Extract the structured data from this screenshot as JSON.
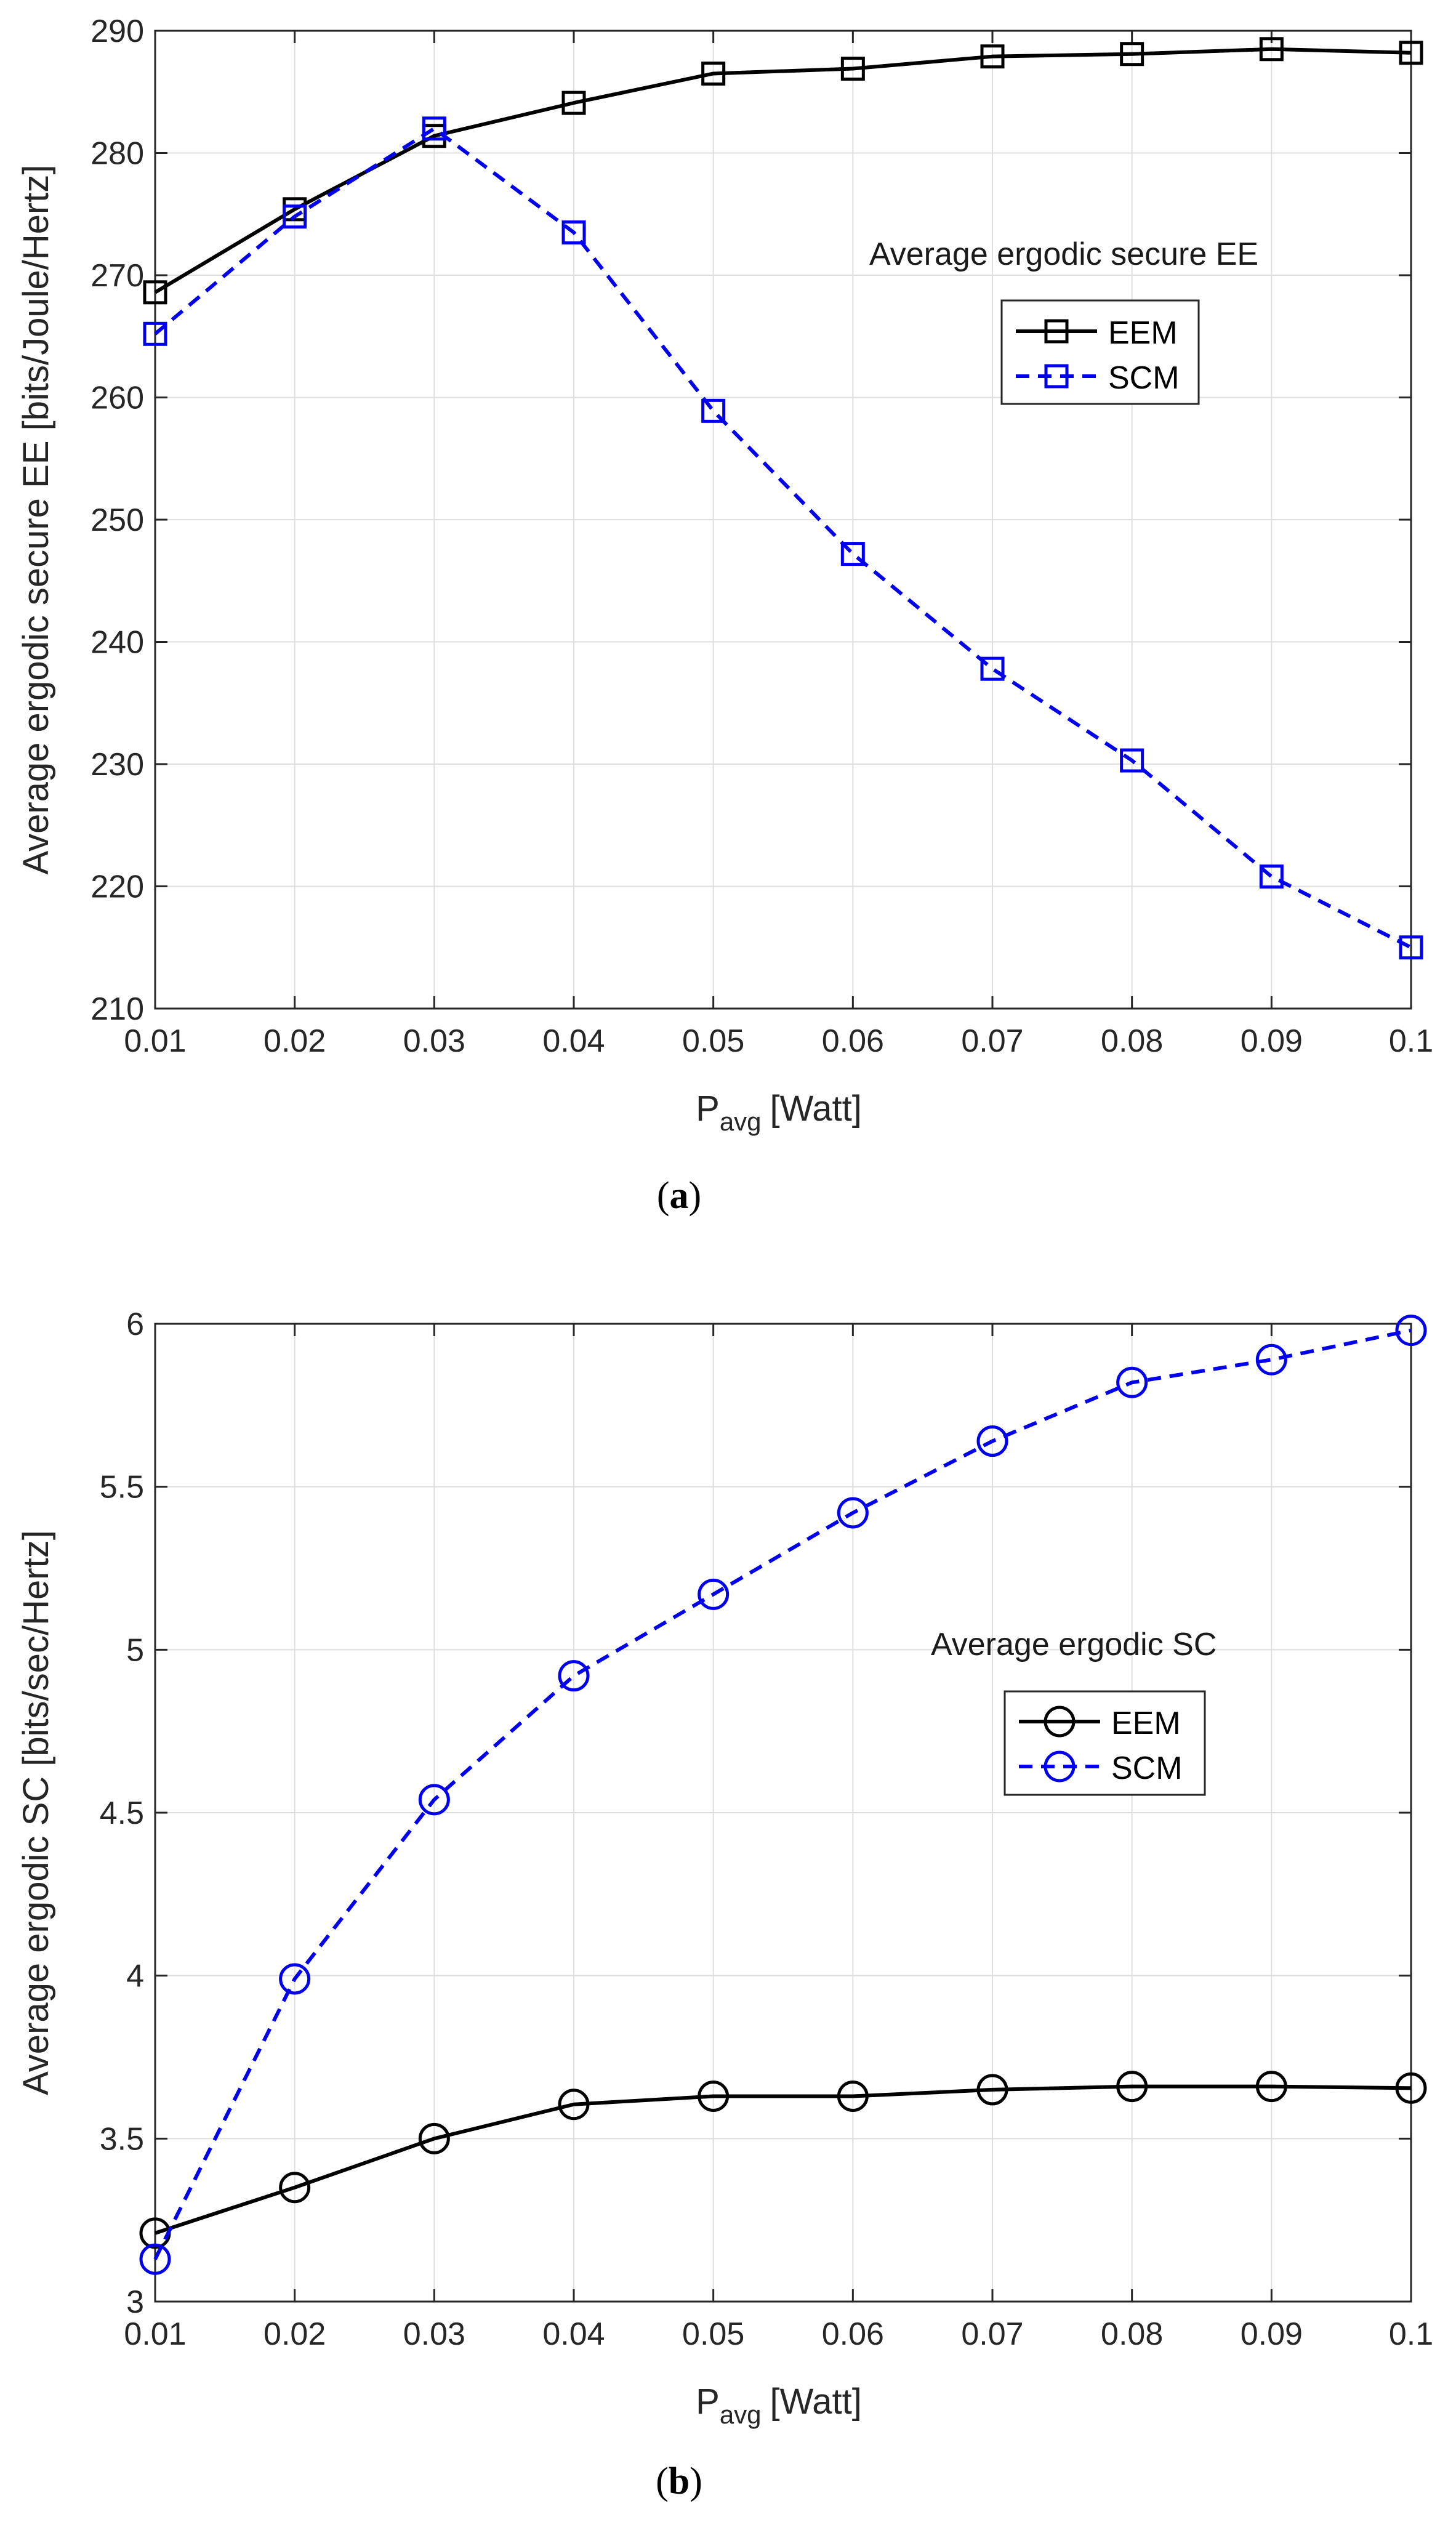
{
  "figure": {
    "caption_a": {
      "open": "(",
      "letter": "a",
      "close": ")"
    },
    "caption_b": {
      "open": "(",
      "letter": "b",
      "close": ")"
    }
  },
  "chart_data": [
    {
      "id": "a",
      "type": "line",
      "title": "",
      "annotation": "Average ergodic secure EE",
      "xlabel": {
        "main": "P",
        "sub": "avg",
        "unit": "[Watt]"
      },
      "ylabel": "Average ergodic secure EE [bits/Joule/Hertz]",
      "x": [
        0.01,
        0.02,
        0.03,
        0.04,
        0.05,
        0.06,
        0.07,
        0.08,
        0.09,
        0.1
      ],
      "xlim": [
        0.01,
        0.1
      ],
      "ylim": [
        210,
        290
      ],
      "xticks": [
        "0.01",
        "0.02",
        "0.03",
        "0.04",
        "0.05",
        "0.06",
        "0.07",
        "0.08",
        "0.09",
        "0.1"
      ],
      "yticks": [
        "210",
        "220",
        "230",
        "240",
        "250",
        "260",
        "270",
        "280",
        "290"
      ],
      "yticks_values": [
        210,
        220,
        230,
        240,
        250,
        260,
        270,
        280,
        290
      ],
      "grid": true,
      "legend_position": "right-upper",
      "series": [
        {
          "name": "EEM",
          "color": "#000000",
          "dash": "solid",
          "marker": "square",
          "values": [
            268.6,
            275.4,
            281.4,
            284.1,
            286.5,
            286.9,
            287.9,
            288.1,
            288.5,
            288.2
          ]
        },
        {
          "name": "SCM",
          "color": "#0000ee",
          "dash": "dashed",
          "marker": "square",
          "values": [
            265.2,
            274.8,
            282.0,
            273.5,
            258.9,
            247.2,
            237.8,
            230.3,
            220.8,
            215.0
          ]
        }
      ]
    },
    {
      "id": "b",
      "type": "line",
      "title": "",
      "annotation": "Average ergodic SC",
      "xlabel": {
        "main": "P",
        "sub": "avg",
        "unit": "[Watt]"
      },
      "ylabel": "Average ergodic SC [bits/sec/Hertz]",
      "x": [
        0.01,
        0.02,
        0.03,
        0.04,
        0.05,
        0.06,
        0.07,
        0.08,
        0.09,
        0.1
      ],
      "xlim": [
        0.01,
        0.1
      ],
      "ylim": [
        3,
        6
      ],
      "xticks": [
        "0.01",
        "0.02",
        "0.03",
        "0.04",
        "0.05",
        "0.06",
        "0.07",
        "0.08",
        "0.09",
        "0.1"
      ],
      "yticks": [
        "3",
        "3.5",
        "4",
        "4.5",
        "5",
        "5.5",
        "6"
      ],
      "yticks_values": [
        3,
        3.5,
        4,
        4.5,
        5,
        5.5,
        6
      ],
      "grid": true,
      "legend_position": "right-middle",
      "series": [
        {
          "name": "EEM",
          "color": "#000000",
          "dash": "solid",
          "marker": "circle",
          "values": [
            3.21,
            3.35,
            3.5,
            3.605,
            3.63,
            3.63,
            3.65,
            3.66,
            3.66,
            3.655
          ]
        },
        {
          "name": "SCM",
          "color": "#0000ee",
          "dash": "dashed",
          "marker": "circle",
          "values": [
            3.13,
            3.99,
            4.54,
            4.92,
            5.17,
            5.42,
            5.64,
            5.82,
            5.89,
            5.98
          ]
        }
      ]
    }
  ]
}
